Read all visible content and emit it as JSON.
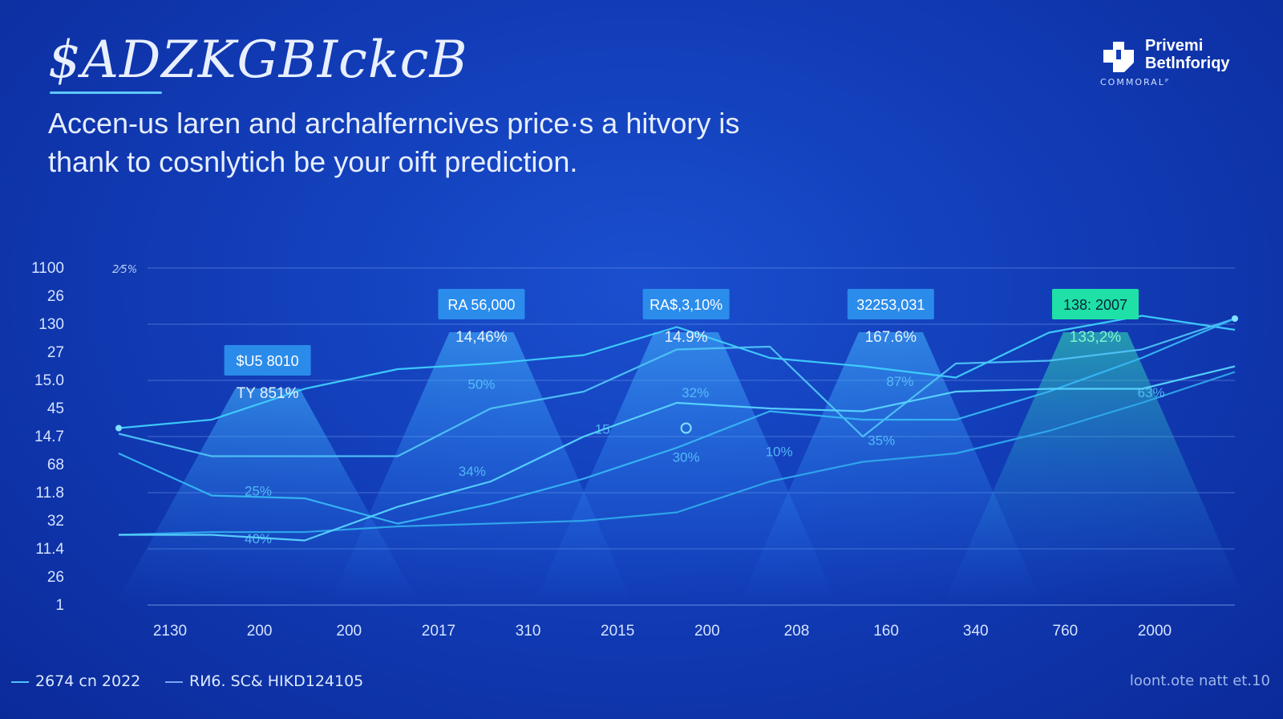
{
  "header": {
    "title": "$ADZKGBIckcB",
    "subtitle_line1": "Accen-us laren and archalferncives price·s a hitvory is",
    "subtitle_line2": "thank to cosnlytich be your oift prediction."
  },
  "logo": {
    "name_line1": "Privemi",
    "name_line2": "Betlnforiqy",
    "sub": "COMMORALᴾ"
  },
  "legend": [
    {
      "label": "2674 cn 2022",
      "color": "#4fc3f7"
    },
    {
      "label": "RИ6. SC& HIKD124105",
      "color": "#7aa6f0"
    }
  ],
  "footnote": "loont.ote natt et.10",
  "colors": {
    "accent": "#5fd3ff",
    "green": "#27e0a8",
    "line": "#4fc3f7",
    "grid": "#6f9be8"
  },
  "chart_data": {
    "type": "line",
    "title": "",
    "xlabel": "",
    "ylabel": "",
    "corner_label": "2⁄5%",
    "ylim": [
      0,
      12
    ],
    "y_tick_labels": [
      "1100",
      "26",
      "130",
      "27",
      "15.0",
      "45",
      "14.7",
      "68",
      "11.8",
      "32",
      "11.4",
      "26",
      "1"
    ],
    "grid_lines": [
      12,
      10,
      8,
      6,
      4,
      2,
      0
    ],
    "x_tick_labels": [
      "2130",
      "200",
      "200",
      "2017",
      "310",
      "2015",
      "200",
      "208",
      "160",
      "340",
      "760",
      "2000"
    ],
    "x": [
      0,
      1,
      2,
      3,
      4,
      5,
      6,
      7,
      8,
      9,
      10,
      11,
      12
    ],
    "xlim": [
      0,
      12
    ],
    "series": [
      {
        "values": [
          6.3,
          6.6,
          7.7,
          8.4,
          8.6,
          8.9,
          9.9,
          8.8,
          8.5,
          8.1,
          9.7,
          10.3,
          9.8
        ]
      },
      {
        "values": [
          6.1,
          5.3,
          5.3,
          5.3,
          7.0,
          7.6,
          9.1,
          9.2,
          6.0,
          8.6,
          8.7,
          9.1,
          10.2
        ]
      },
      {
        "values": [
          5.4,
          3.9,
          3.8,
          2.9,
          3.6,
          4.5,
          5.6,
          6.9,
          6.6,
          6.6,
          7.6,
          8.8,
          10.2
        ]
      },
      {
        "values": [
          2.5,
          2.6,
          2.6,
          2.8,
          2.9,
          3.0,
          3.3,
          4.4,
          5.1,
          5.4,
          6.2,
          7.2,
          8.3
        ]
      },
      {
        "values": [
          2.5,
          2.5,
          2.3,
          3.5,
          4.4,
          6.0,
          7.2,
          7.0,
          6.9,
          7.6,
          7.7,
          7.7,
          8.5
        ]
      }
    ],
    "callouts": [
      {
        "x": 1.6,
        "y": 8.0,
        "value": "$U5 8010",
        "pct": "TY 851%",
        "highlight": false
      },
      {
        "x": 3.9,
        "y": 10.0,
        "value": "RA 56,000",
        "pct": "14,46%",
        "highlight": false
      },
      {
        "x": 6.1,
        "y": 10.0,
        "value": "RA$,3,10%",
        "pct": "14.9%",
        "highlight": false
      },
      {
        "x": 8.3,
        "y": 10.0,
        "value": "32253,031",
        "pct": "167.6%",
        "highlight": false
      },
      {
        "x": 10.5,
        "y": 10.0,
        "value": "138: 2007",
        "pct": "133,2%",
        "highlight": true
      }
    ],
    "annotations": [
      {
        "x": 3.9,
        "y": 7.7,
        "text": "50%"
      },
      {
        "x": 5.2,
        "y": 6.1,
        "text": "15"
      },
      {
        "x": 6.2,
        "y": 7.4,
        "text": "32%"
      },
      {
        "x": 8.4,
        "y": 7.8,
        "text": "87%"
      },
      {
        "x": 11.1,
        "y": 7.4,
        "text": "63%"
      },
      {
        "x": 3.8,
        "y": 4.6,
        "text": "34%"
      },
      {
        "x": 6.1,
        "y": 5.1,
        "text": "30%"
      },
      {
        "x": 7.1,
        "y": 5.3,
        "text": "10%"
      },
      {
        "x": 8.2,
        "y": 5.7,
        "text": "35%"
      },
      {
        "x": 1.5,
        "y": 3.9,
        "text": "25%"
      },
      {
        "x": 1.5,
        "y": 2.2,
        "text": "40%"
      }
    ]
  }
}
